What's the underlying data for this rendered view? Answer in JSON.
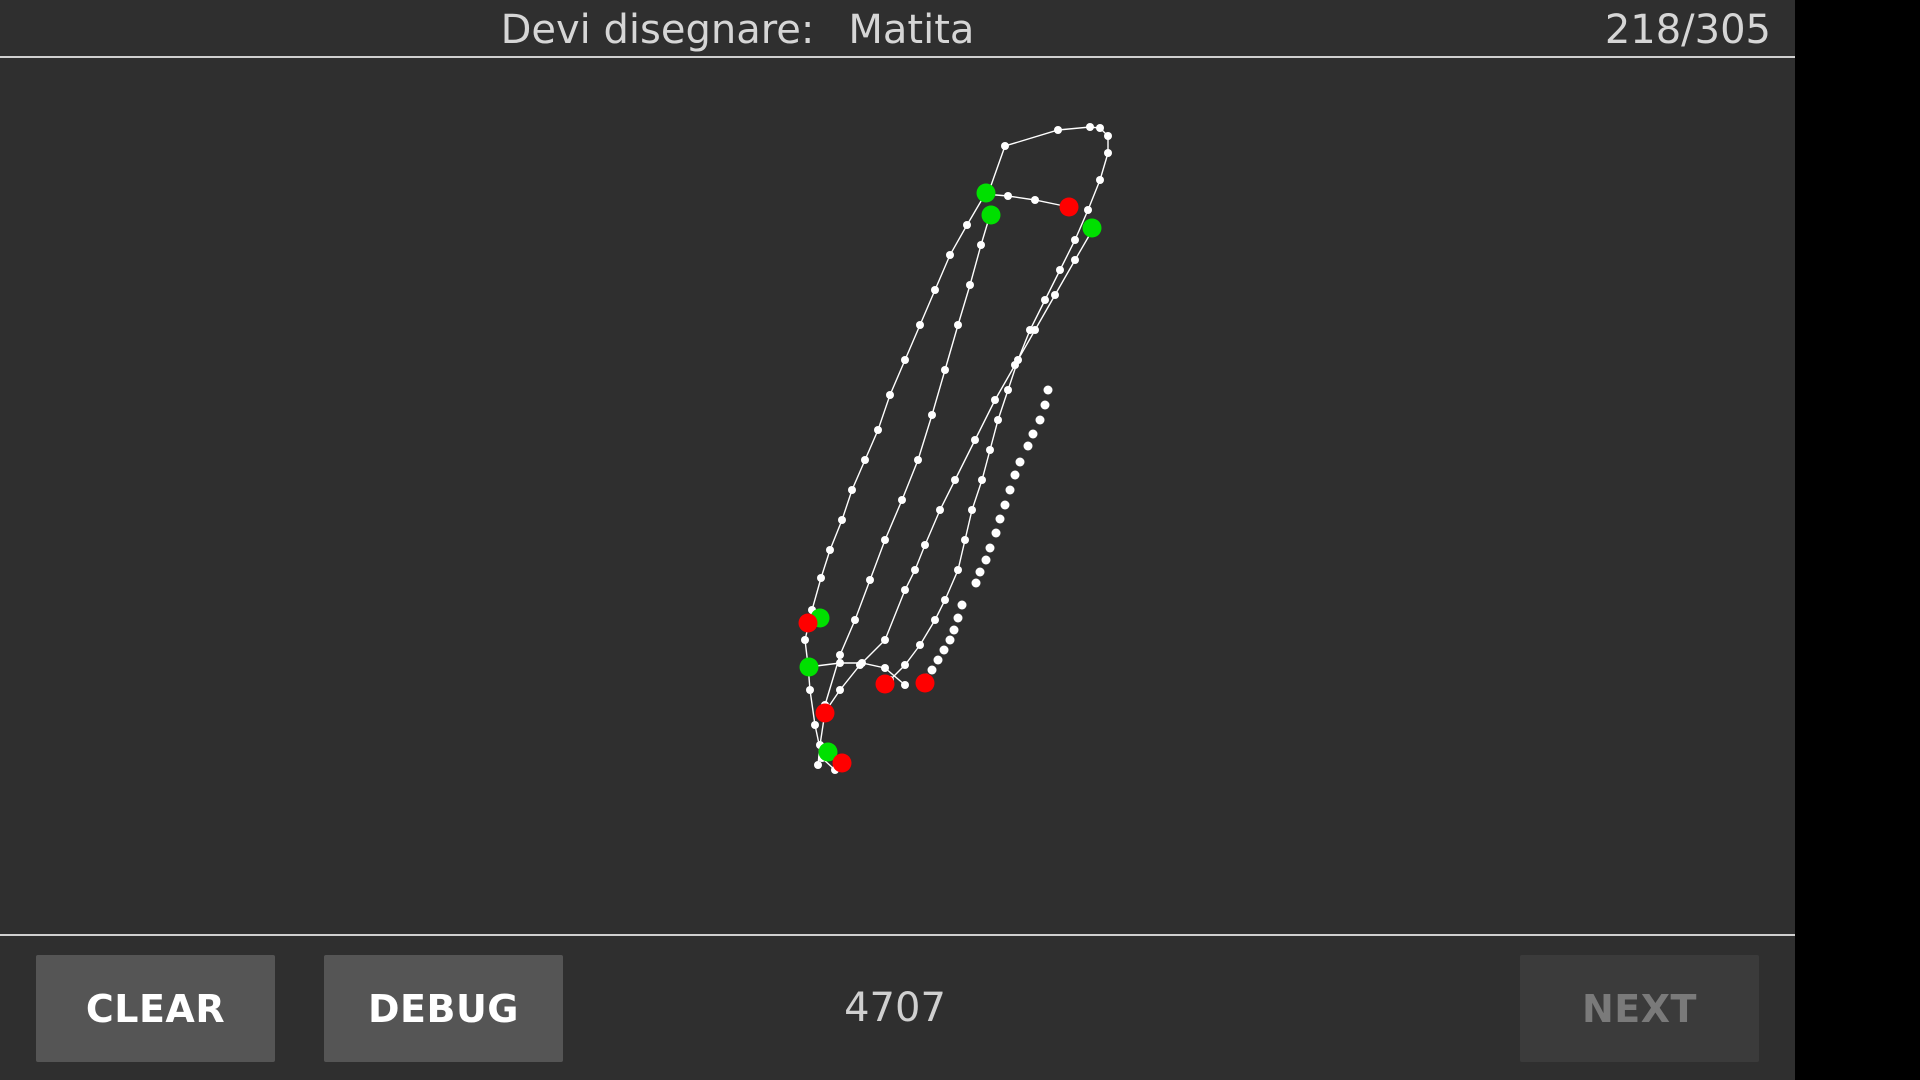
{
  "header": {
    "prompt_label": "Devi disegnare:",
    "target_word": "Matita",
    "progress": "218/305"
  },
  "footer": {
    "clear_label": "CLEAR",
    "debug_label": "DEBUG",
    "score": "4707",
    "next_label": "NEXT"
  },
  "colors": {
    "background": "#2f2f2f",
    "stroke": "#ffffff",
    "start_point": "#00e000",
    "end_point": "#ff0000",
    "button": "#555555",
    "button_disabled": "#3b3b3b"
  }
}
